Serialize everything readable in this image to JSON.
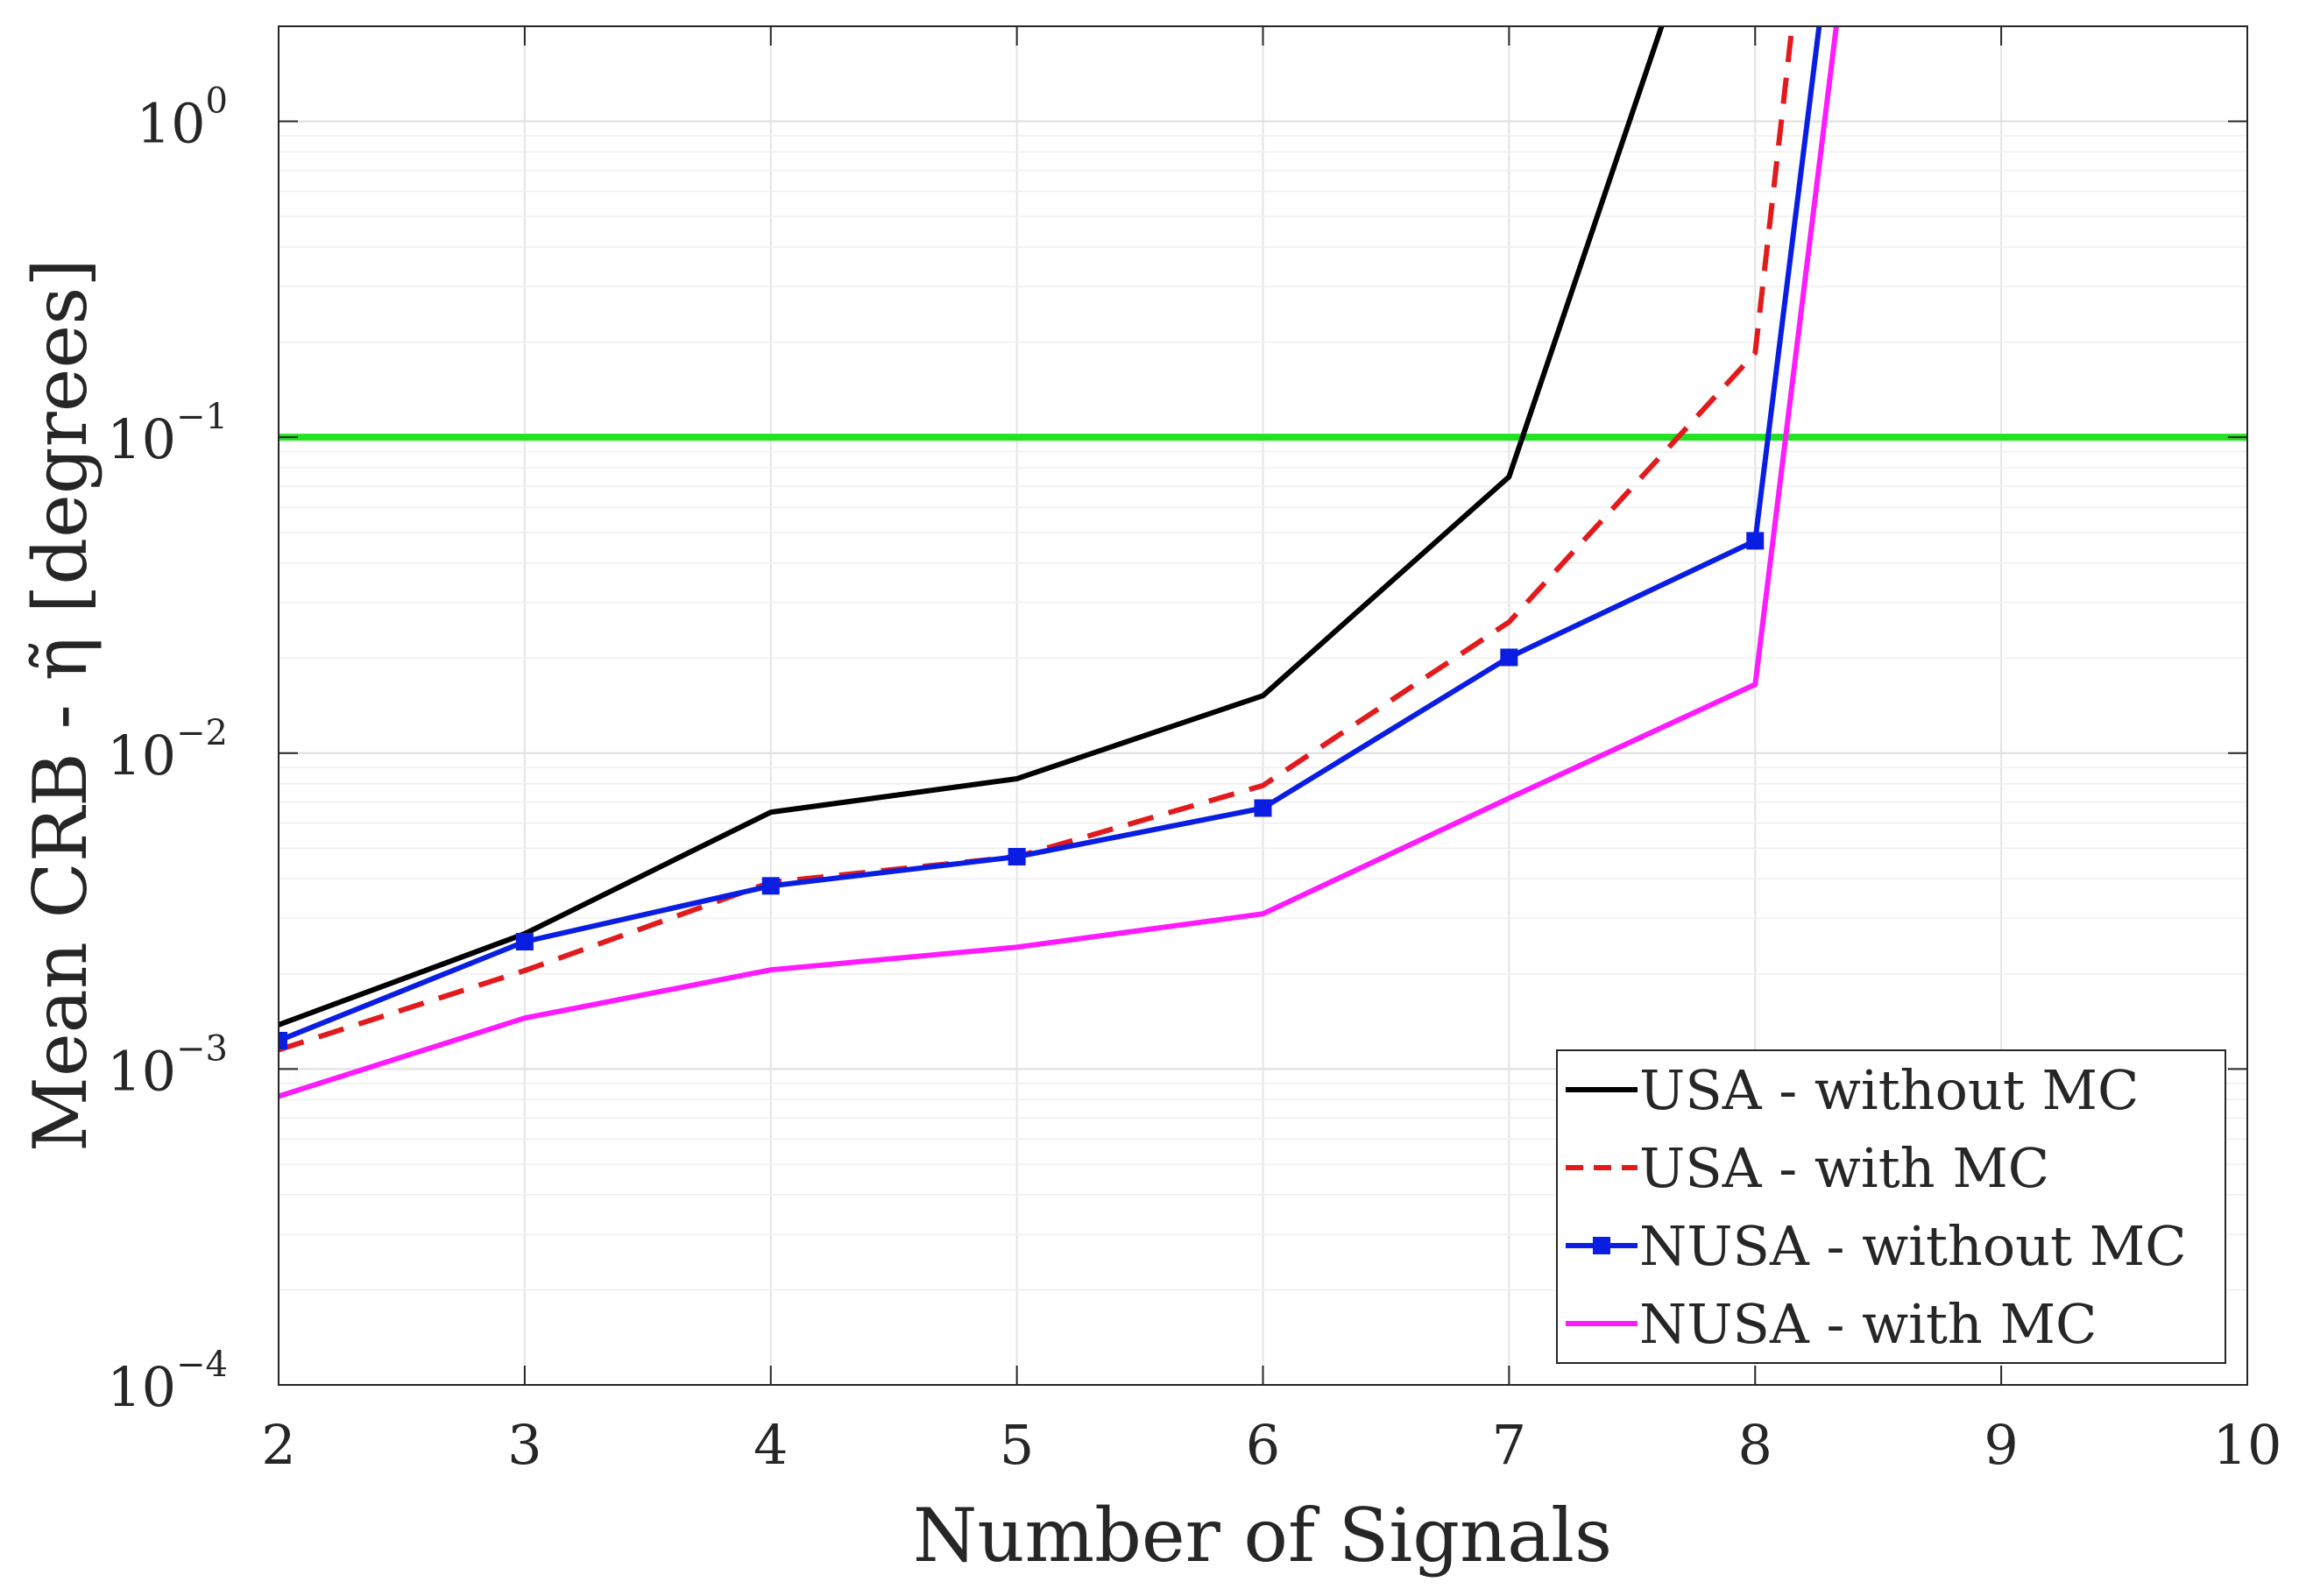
{
  "chart_data": {
    "type": "line",
    "xlabel": "Number of Signals",
    "ylabel": "Mean CRB - η̃ [degrees]",
    "y_scale": "log",
    "xlim": [
      2,
      10
    ],
    "ylim": [
      0.0001,
      2
    ],
    "grid": true,
    "x_ticks": [
      "2",
      "3",
      "4",
      "5",
      "6",
      "7",
      "8",
      "9",
      "10"
    ],
    "y_ticks": [
      {
        "value": 0.0001,
        "base": "10",
        "exp": "−4"
      },
      {
        "value": 0.001,
        "base": "10",
        "exp": "−3"
      },
      {
        "value": 0.01,
        "base": "10",
        "exp": "−2"
      },
      {
        "value": 0.1,
        "base": "10",
        "exp": "−1"
      },
      {
        "value": 1,
        "base": "10",
        "exp": "0"
      }
    ],
    "reference_line": {
      "y": 0.1,
      "color": "#22e322"
    },
    "legend_position": "bottom-right",
    "series": [
      {
        "name": "USA - without MC",
        "color": "#000000",
        "style": "solid",
        "marker": "none",
        "points": [
          [
            2,
            0.00138
          ],
          [
            3,
            0.00268
          ],
          [
            4,
            0.0065
          ],
          [
            5,
            0.0083
          ],
          [
            6,
            0.0152
          ],
          [
            7,
            0.075
          ],
          [
            7.62,
            2.0
          ]
        ]
      },
      {
        "name": "USA - with MC",
        "color": "#e31a1c",
        "style": "dashed",
        "marker": "none",
        "points": [
          [
            2,
            0.00115
          ],
          [
            3,
            0.00205
          ],
          [
            4,
            0.0039
          ],
          [
            5,
            0.0047
          ],
          [
            6,
            0.0079
          ],
          [
            7,
            0.026
          ],
          [
            8,
            0.185
          ],
          [
            8.15,
            2.0
          ]
        ]
      },
      {
        "name": "NUSA - without MC",
        "color": "#0a1ee3",
        "style": "solid",
        "marker": "square",
        "points": [
          [
            2,
            0.00123
          ],
          [
            3,
            0.00253
          ],
          [
            4,
            0.0038
          ],
          [
            5,
            0.0047
          ],
          [
            6,
            0.0067
          ],
          [
            7,
            0.0201
          ],
          [
            8,
            0.047
          ],
          [
            8.26,
            2.0
          ]
        ]
      },
      {
        "name": "NUSA - with MC",
        "color": "#ff1aff",
        "style": "solid",
        "marker": "none",
        "points": [
          [
            2,
            0.00082
          ],
          [
            3,
            0.00145
          ],
          [
            4,
            0.00206
          ],
          [
            5,
            0.00243
          ],
          [
            6,
            0.0031
          ],
          [
            7,
            0.0072
          ],
          [
            8,
            0.0165
          ],
          [
            8.33,
            2.0
          ]
        ]
      }
    ]
  }
}
